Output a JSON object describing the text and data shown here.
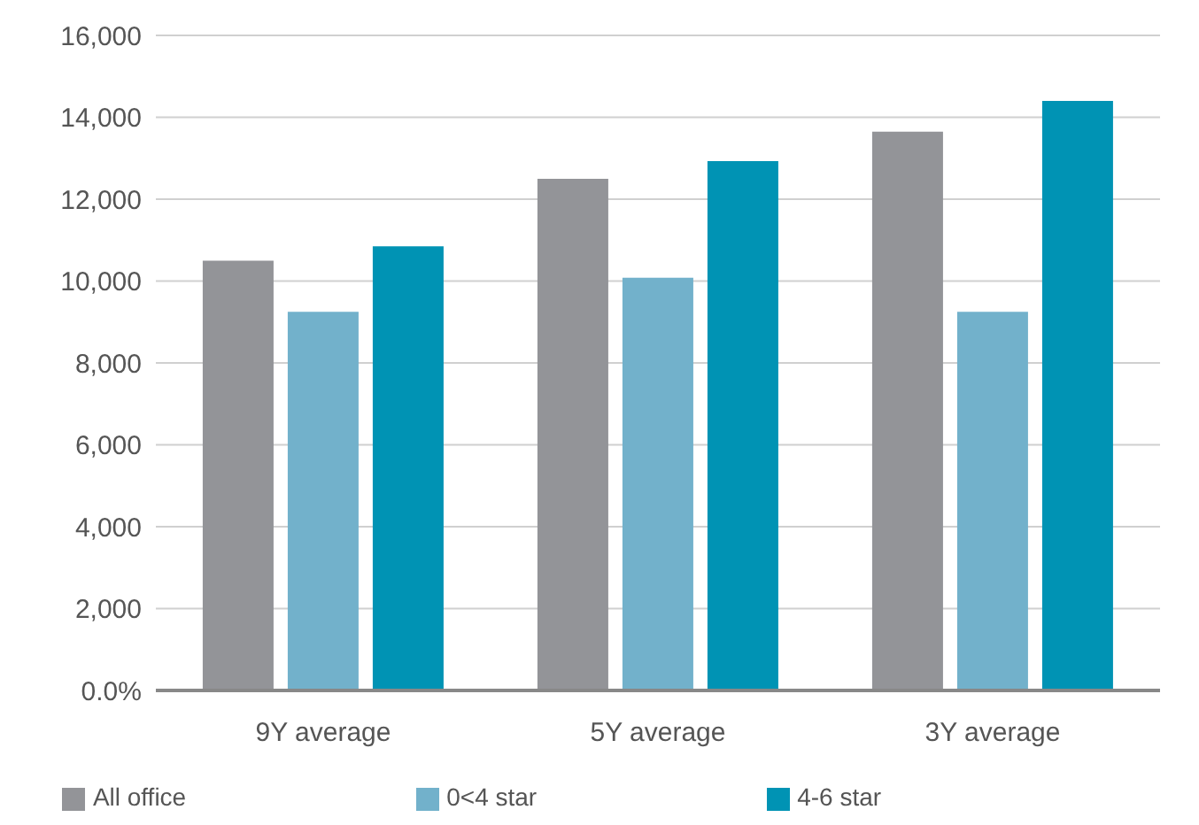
{
  "chart_data": {
    "type": "bar",
    "categories": [
      "9Y average",
      "5Y average",
      "3Y average"
    ],
    "series": [
      {
        "name": "All office",
        "color": "#939498",
        "values": [
          10500,
          12500,
          13650
        ]
      },
      {
        "name": "0<4 star",
        "color": "#72b1cb",
        "values": [
          9250,
          10080,
          9250
        ]
      },
      {
        "name": "4-6 star",
        "color": "#0093b4",
        "values": [
          10850,
          12930,
          14400
        ]
      }
    ],
    "ylim": [
      0,
      16000
    ],
    "yticks": [
      {
        "value": 0,
        "label": "0.0%"
      },
      {
        "value": 2000,
        "label": "2,000"
      },
      {
        "value": 4000,
        "label": "4,000"
      },
      {
        "value": 6000,
        "label": "6,000"
      },
      {
        "value": 8000,
        "label": "8,000"
      },
      {
        "value": 10000,
        "label": "10,000"
      },
      {
        "value": 12000,
        "label": "12,000"
      },
      {
        "value": 14000,
        "label": "14,000"
      },
      {
        "value": 16000,
        "label": "16,000"
      }
    ],
    "grid": "y",
    "legend": "bottom"
  }
}
